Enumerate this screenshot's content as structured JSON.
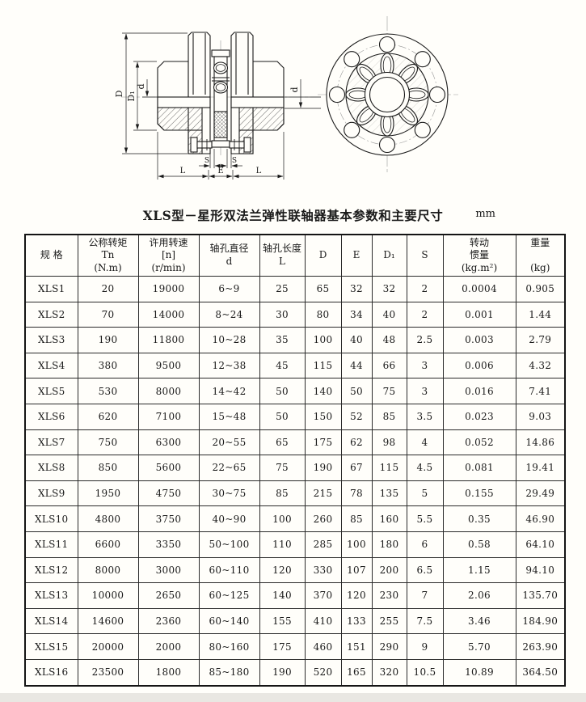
{
  "page": {
    "title": "XLS型－星形双法兰弹性联轴器基本参数和主要尺寸",
    "unit_label": "mm",
    "colors": {
      "line": "#1a1a1a",
      "background": "#fffefa"
    }
  },
  "drawing": {
    "description": "section-view and front-view of XLS star-type double-flange elastic coupling",
    "labels": {
      "D": "D",
      "D1": "D₁",
      "d_left": "d",
      "d_right": "d",
      "S_left": "S",
      "S_right": "S",
      "L_left": "L",
      "E": "E",
      "L_right": "L"
    }
  },
  "table": {
    "headers": [
      "规  格",
      "公称转矩\nTn\n(N.m)",
      "许用转速\n[n]\n(r/min)",
      "轴孔直径\nd",
      "轴孔长度\nL",
      "D",
      "E",
      "D₁",
      "S",
      "转动\n惯量\n(kg.m²)",
      "重量\n\n(kg)"
    ],
    "rows": [
      [
        "XLS1",
        "20",
        "19000",
        "6~9",
        "25",
        "65",
        "32",
        "32",
        "2",
        "0.0004",
        "0.905"
      ],
      [
        "XLS2",
        "70",
        "14000",
        "8~24",
        "30",
        "80",
        "34",
        "40",
        "2",
        "0.001",
        "1.44"
      ],
      [
        "XLS3",
        "190",
        "11800",
        "10~28",
        "35",
        "100",
        "40",
        "48",
        "2.5",
        "0.003",
        "2.79"
      ],
      [
        "XLS4",
        "380",
        "9500",
        "12~38",
        "45",
        "115",
        "44",
        "66",
        "3",
        "0.006",
        "4.32"
      ],
      [
        "XLS5",
        "530",
        "8000",
        "14~42",
        "50",
        "140",
        "50",
        "75",
        "3",
        "0.016",
        "7.41"
      ],
      [
        "XLS6",
        "620",
        "7100",
        "15~48",
        "50",
        "150",
        "52",
        "85",
        "3.5",
        "0.023",
        "9.03"
      ],
      [
        "XLS7",
        "750",
        "6300",
        "20~55",
        "65",
        "175",
        "62",
        "98",
        "4",
        "0.052",
        "14.86"
      ],
      [
        "XLS8",
        "850",
        "5600",
        "22~65",
        "75",
        "190",
        "67",
        "115",
        "4.5",
        "0.081",
        "19.41"
      ],
      [
        "XLS9",
        "1950",
        "4750",
        "30~75",
        "85",
        "215",
        "78",
        "135",
        "5",
        "0.155",
        "29.49"
      ],
      [
        "XLS10",
        "4800",
        "3750",
        "40~90",
        "100",
        "260",
        "85",
        "160",
        "5.5",
        "0.35",
        "46.90"
      ],
      [
        "XLS11",
        "6600",
        "3350",
        "50~100",
        "110",
        "285",
        "100",
        "180",
        "6",
        "0.58",
        "64.10"
      ],
      [
        "XLS12",
        "8000",
        "3000",
        "60~110",
        "120",
        "330",
        "107",
        "200",
        "6.5",
        "1.15",
        "94.10"
      ],
      [
        "XLS13",
        "10000",
        "2650",
        "60~125",
        "140",
        "370",
        "120",
        "230",
        "7",
        "2.06",
        "135.70"
      ],
      [
        "XLS14",
        "14600",
        "2360",
        "60~140",
        "155",
        "410",
        "133",
        "255",
        "7.5",
        "3.46",
        "184.90"
      ],
      [
        "XLS15",
        "20000",
        "2000",
        "80~160",
        "175",
        "460",
        "151",
        "290",
        "9",
        "5.70",
        "263.90"
      ],
      [
        "XLS16",
        "23500",
        "1800",
        "85~180",
        "190",
        "520",
        "165",
        "320",
        "10.5",
        "10.89",
        "364.50"
      ]
    ]
  }
}
